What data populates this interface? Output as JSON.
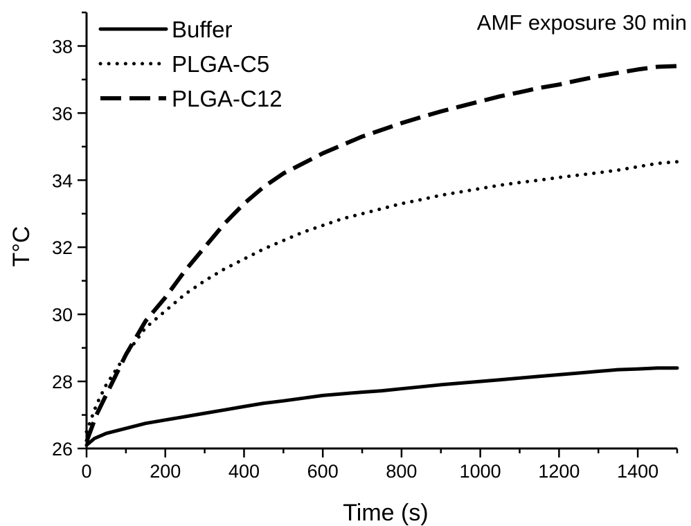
{
  "chart_data": {
    "type": "line",
    "title": "",
    "annotation": "AMF exposure 30 min",
    "xlabel": "Time (s)",
    "ylabel": "T°C",
    "xlim": [
      0,
      1500
    ],
    "ylim": [
      26,
      39
    ],
    "xticks": [
      0,
      200,
      400,
      600,
      800,
      1000,
      1200,
      1400
    ],
    "yticks": [
      26,
      28,
      30,
      32,
      34,
      36,
      38
    ],
    "grid": false,
    "legend_position": "top-left",
    "series": [
      {
        "name": "Buffer",
        "style": "solid",
        "color": "#000000",
        "x": [
          0,
          20,
          50,
          100,
          150,
          200,
          250,
          300,
          350,
          400,
          450,
          500,
          550,
          600,
          650,
          700,
          750,
          800,
          850,
          900,
          950,
          1000,
          1050,
          1100,
          1150,
          1200,
          1250,
          1300,
          1350,
          1400,
          1450,
          1500
        ],
        "y": [
          26.1,
          26.3,
          26.45,
          26.6,
          26.75,
          26.85,
          26.95,
          27.05,
          27.15,
          27.25,
          27.35,
          27.42,
          27.5,
          27.58,
          27.63,
          27.68,
          27.72,
          27.78,
          27.84,
          27.9,
          27.95,
          28.0,
          28.05,
          28.1,
          28.15,
          28.2,
          28.25,
          28.3,
          28.35,
          28.37,
          28.4,
          28.4
        ]
      },
      {
        "name": "PLGA-C5",
        "style": "dotted",
        "color": "#000000",
        "x": [
          0,
          25,
          50,
          100,
          150,
          200,
          250,
          300,
          350,
          400,
          450,
          500,
          550,
          600,
          650,
          700,
          750,
          800,
          850,
          900,
          950,
          1000,
          1050,
          1100,
          1150,
          1200,
          1250,
          1300,
          1350,
          1400,
          1450,
          1500
        ],
        "y": [
          26.5,
          27.3,
          27.9,
          28.8,
          29.6,
          30.1,
          30.6,
          31.0,
          31.35,
          31.65,
          31.95,
          32.2,
          32.45,
          32.65,
          32.85,
          33.0,
          33.15,
          33.3,
          33.42,
          33.55,
          33.65,
          33.75,
          33.85,
          33.93,
          34.0,
          34.08,
          34.15,
          34.22,
          34.3,
          34.4,
          34.5,
          34.55
        ]
      },
      {
        "name": "PLGA-C12",
        "style": "dashed",
        "color": "#000000",
        "x": [
          0,
          25,
          50,
          100,
          150,
          200,
          250,
          300,
          350,
          400,
          450,
          500,
          550,
          600,
          650,
          700,
          750,
          800,
          850,
          900,
          950,
          1000,
          1050,
          1100,
          1150,
          1200,
          1250,
          1300,
          1350,
          1400,
          1450,
          1500
        ],
        "y": [
          26.2,
          27.0,
          27.6,
          28.8,
          29.8,
          30.5,
          31.3,
          32.0,
          32.7,
          33.3,
          33.8,
          34.2,
          34.5,
          34.8,
          35.05,
          35.3,
          35.5,
          35.7,
          35.88,
          36.05,
          36.2,
          36.35,
          36.5,
          36.62,
          36.75,
          36.85,
          36.98,
          37.1,
          37.2,
          37.3,
          37.38,
          37.4
        ]
      }
    ]
  }
}
